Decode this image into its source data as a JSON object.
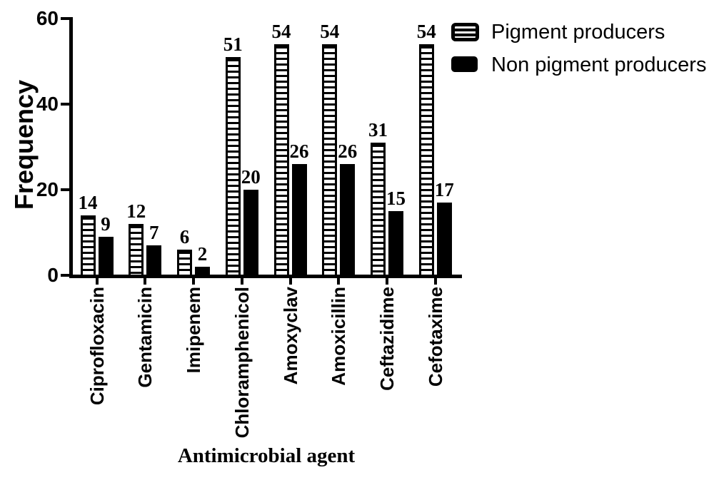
{
  "chart_data": {
    "type": "bar",
    "title": "",
    "xlabel": "Antimicrobial agent",
    "ylabel": "Frequency",
    "categories": [
      "Ciprofloxacin",
      "Gentamicin",
      "Imipenem",
      "Chloramphenicol",
      "Amoxyclav",
      "Amoxicillin",
      "Ceftazidime",
      "Cefotaxime"
    ],
    "series": [
      {
        "name": "Pigment producers",
        "fill": "horizontal-stripes",
        "values": [
          14,
          12,
          6,
          51,
          54,
          54,
          31,
          54
        ]
      },
      {
        "name": "Non pigment producers",
        "fill": "solid",
        "values": [
          9,
          7,
          2,
          20,
          26,
          26,
          15,
          17
        ]
      }
    ],
    "ylim": [
      0,
      60
    ],
    "yticks": [
      0,
      20,
      40,
      60
    ],
    "bar_value_labels_shown": true,
    "grid": false,
    "legend_position": "top-right",
    "colors": {
      "foreground": "#000000",
      "background": "#ffffff"
    }
  }
}
